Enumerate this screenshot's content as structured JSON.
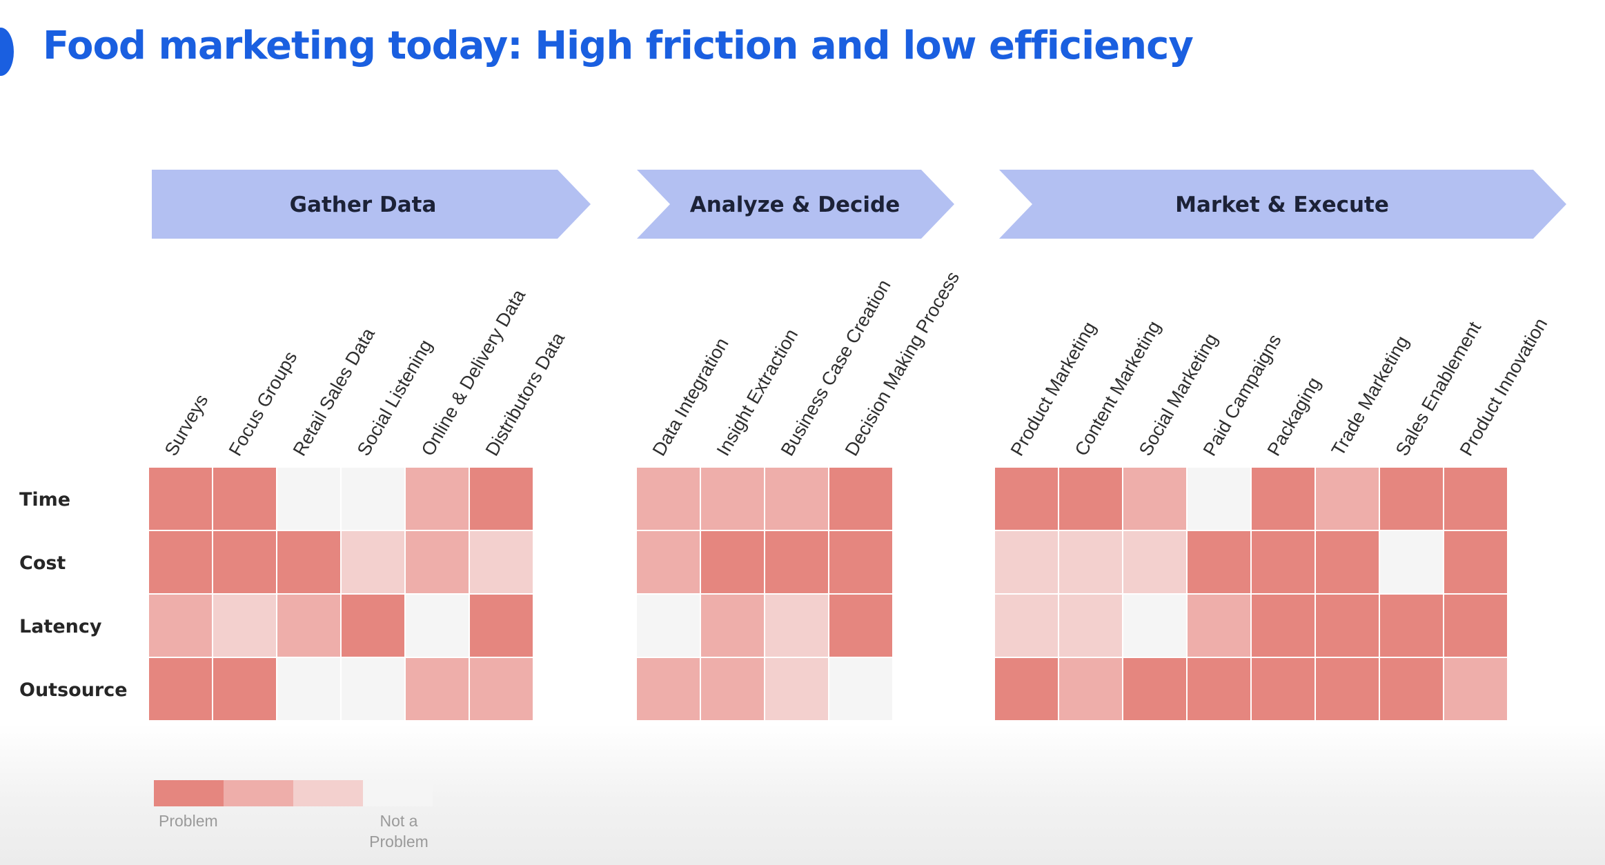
{
  "title": "Food marketing today: High friction and low efficiency",
  "colors": {
    "title": "#1a5fe0",
    "chevron": "#b3c0f2",
    "level_3": "#e5867f",
    "level_2": "#eeaeaa",
    "level_1": "#f3d0ce",
    "level_0": "#f5f5f5"
  },
  "chart_data": {
    "type": "heatmap",
    "rows": [
      "Time",
      "Cost",
      "Latency",
      "Outsource"
    ],
    "scale": "3 = Problem, 0 = Not a Problem",
    "groups": [
      {
        "name": "Gather Data",
        "columns": [
          "Surveys",
          "Focus Groups",
          "Retail Sales Data",
          "Social Listening",
          "Online & Delivery Data",
          "Distributors Data"
        ],
        "values": [
          [
            3,
            3,
            0,
            0,
            2,
            3
          ],
          [
            3,
            3,
            3,
            1,
            2,
            1
          ],
          [
            2,
            1,
            2,
            3,
            0,
            3
          ],
          [
            3,
            3,
            0,
            0,
            2,
            2
          ]
        ]
      },
      {
        "name": "Analyze & Decide",
        "columns": [
          "Data Integration",
          "Insight Extraction",
          "Business Case Creation",
          "Decision Making Process"
        ],
        "values": [
          [
            2,
            2,
            2,
            3
          ],
          [
            2,
            3,
            3,
            3
          ],
          [
            0,
            2,
            1,
            3
          ],
          [
            2,
            2,
            1,
            0
          ]
        ]
      },
      {
        "name": "Market & Execute",
        "columns": [
          "Product Marketing",
          "Content Marketing",
          "Social Marketing",
          "Paid Campaigns",
          "Packaging",
          "Trade Marketing",
          "Sales Enablement",
          "Product Innovation"
        ],
        "values": [
          [
            3,
            3,
            2,
            0,
            3,
            2,
            3,
            3
          ],
          [
            1,
            1,
            1,
            3,
            3,
            3,
            0,
            3
          ],
          [
            1,
            1,
            0,
            2,
            3,
            3,
            3,
            3
          ],
          [
            3,
            2,
            3,
            3,
            3,
            3,
            3,
            2
          ]
        ]
      }
    ],
    "legend": {
      "left_label": "Problem",
      "right_label": "Not a Problem",
      "levels": [
        3,
        2,
        1,
        0
      ]
    }
  }
}
